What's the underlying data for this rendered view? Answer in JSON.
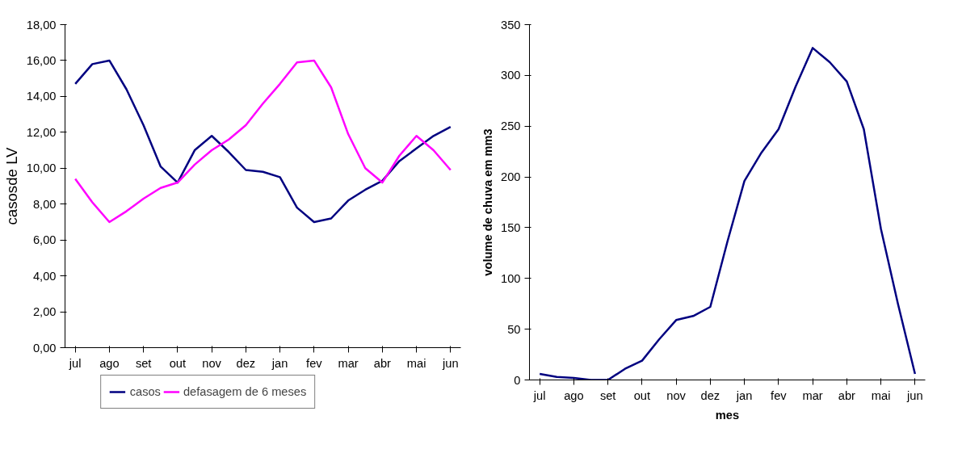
{
  "chart_data": [
    {
      "type": "line",
      "ylabel": "casosde LV",
      "legend": "bottom",
      "grid": false,
      "categories": [
        "jul",
        null,
        "ago",
        null,
        "set",
        null,
        "out",
        null,
        "nov",
        null,
        "dez",
        null,
        "jan",
        null,
        "fev",
        null,
        "mar",
        null,
        "abr",
        null,
        "mai",
        null,
        "jun"
      ],
      "ylim": [
        0,
        18
      ],
      "yticks": [
        {
          "value": 0,
          "label": "0,00"
        },
        {
          "value": 2,
          "label": "2,00"
        },
        {
          "value": 4,
          "label": "4,00"
        },
        {
          "value": 6,
          "label": "6,00"
        },
        {
          "value": 8,
          "label": "8,00"
        },
        {
          "value": 10,
          "label": "10,00"
        },
        {
          "value": 12,
          "label": "12,00"
        },
        {
          "value": 14,
          "label": "14,00"
        },
        {
          "value": 16,
          "label": "16,00"
        },
        {
          "value": 18,
          "label": "18,00"
        }
      ],
      "series": [
        {
          "name": "casos",
          "color": "#000080",
          "values": [
            14.7,
            15.8,
            16.0,
            14.4,
            12.4,
            10.1,
            9.2,
            11.0,
            11.8,
            10.9,
            9.9,
            9.8,
            9.5,
            7.8,
            7.0,
            7.2,
            8.2,
            8.8,
            9.3,
            10.4,
            11.1,
            11.8,
            12.3
          ]
        },
        {
          "name": "defasagem de 6 meses",
          "color": "#ff00ff",
          "values": [
            9.4,
            8.1,
            7.0,
            7.6,
            8.3,
            8.9,
            9.2,
            10.2,
            11.0,
            11.6,
            12.4,
            13.6,
            14.7,
            15.9,
            16.0,
            14.5,
            11.9,
            10.0,
            9.2,
            10.7,
            11.8,
            11.0,
            9.9
          ]
        }
      ]
    },
    {
      "type": "line",
      "ylabel": "volume de chuva em mm3",
      "xlabel": "mes",
      "grid": false,
      "categories": [
        "jul",
        null,
        "ago",
        null,
        "set",
        null,
        "out",
        null,
        "nov",
        null,
        "dez",
        null,
        "jan",
        null,
        "fev",
        null,
        "mar",
        null,
        "abr",
        null,
        "mai",
        null,
        "jun"
      ],
      "ylim": [
        0,
        350
      ],
      "yticks": [
        0,
        50,
        100,
        150,
        200,
        250,
        300,
        350
      ],
      "series": [
        {
          "color": "#000080",
          "values": [
            6,
            3,
            2,
            0,
            0,
            11,
            19,
            40,
            59,
            63,
            72,
            136,
            196,
            224,
            247,
            289,
            327,
            313,
            294,
            247,
            149,
            75,
            6
          ]
        }
      ]
    }
  ]
}
